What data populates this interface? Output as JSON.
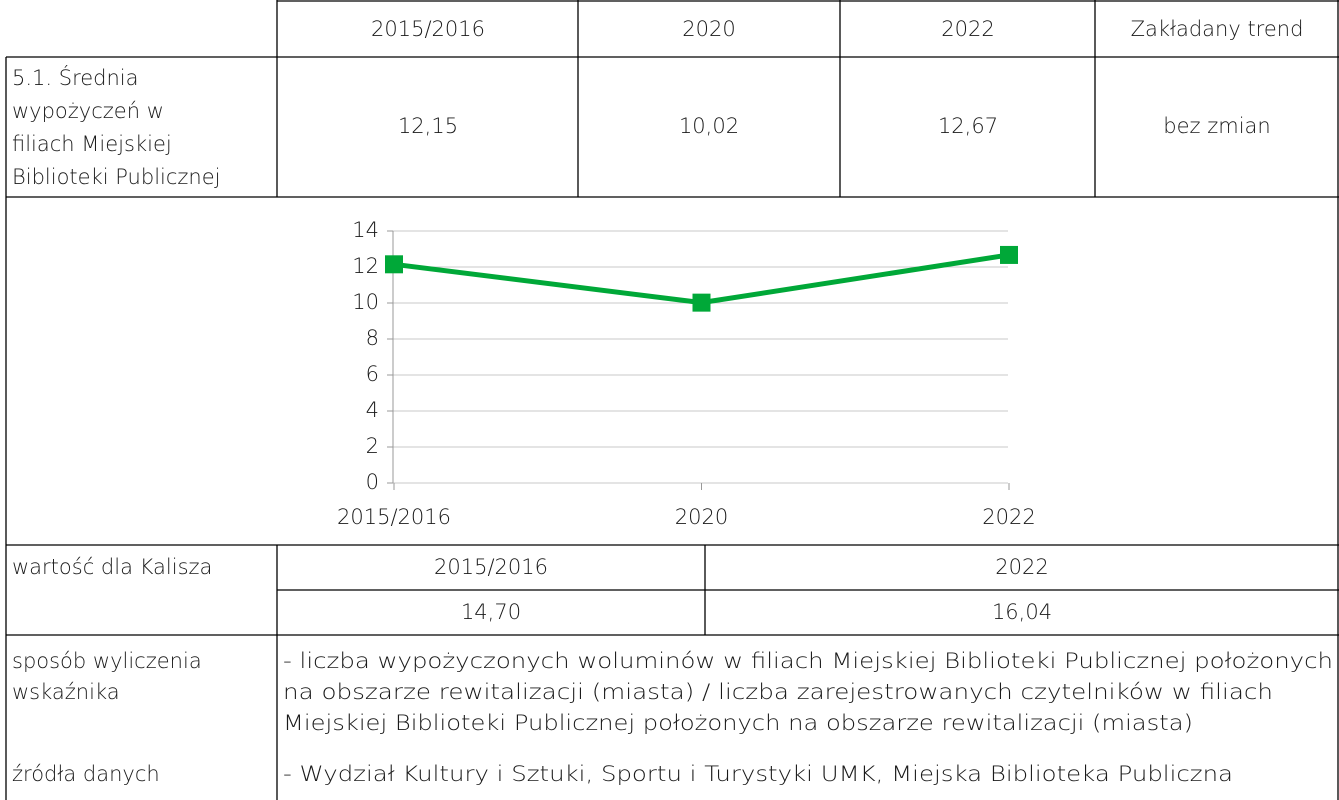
{
  "table": {
    "header": [
      "2015/2016",
      "2020",
      "2022",
      "Zakładany trend"
    ],
    "indicator": {
      "label_lines": [
        "5.1. Średnia",
        "wypożyczeń w",
        "filiach Miejskiej",
        "Biblioteki Publicznej"
      ],
      "values": [
        "12,15",
        "10,02",
        "12,67",
        "bez zmian"
      ]
    },
    "kalisz": {
      "label": "wartość dla Kalisza",
      "columns": [
        "2015/2016",
        "2022"
      ],
      "values": [
        "14,70",
        "16,04"
      ]
    },
    "method": {
      "label_lines": [
        "sposób wyliczenia",
        "wskaźnika"
      ],
      "text_lines": [
        "- liczba wypożyczonych woluminów w filiach Miejskiej Biblioteki Publicznej położonych",
        "na obszarze rewitalizacji (miasta) / liczba zarejestrowanych czytelników w filiach",
        "Miejskiej Biblioteki Publicznej położonych na obszarze rewitalizacji (miasta)"
      ]
    },
    "source": {
      "label": "źródła danych",
      "text": "- Wydział Kultury i Sztuki, Sportu i Turystyki UMK, Miejska Biblioteka Publiczna"
    }
  },
  "chart_data": {
    "type": "line",
    "categories": [
      "2015/2016",
      "2020",
      "2022"
    ],
    "values": [
      12.15,
      10.02,
      12.67
    ],
    "color": "#00a838",
    "ylim": [
      0,
      14
    ],
    "yticks": [
      0,
      2,
      4,
      6,
      8,
      10,
      12,
      14
    ],
    "grid": true
  }
}
